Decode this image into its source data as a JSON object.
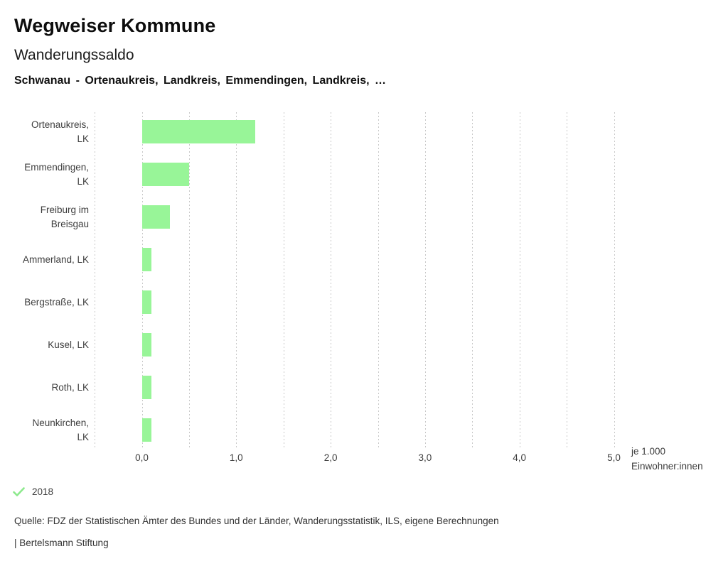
{
  "header": {
    "app_title": "Wegweiser Kommune",
    "chart_title": "Wanderungssaldo",
    "subtitle": "Schwanau - Ortenaukreis, Landkreis, Emmendingen, Landkreis, …"
  },
  "chart_data": {
    "type": "bar",
    "orientation": "horizontal",
    "title": "Wanderungssaldo",
    "categories": [
      "Ortenaukreis, LK",
      "Emmendingen, LK",
      "Freiburg im Breisgau",
      "Ammerland, LK",
      "Bergstraße, LK",
      "Kusel, LK",
      "Roth, LK",
      "Neunkirchen, LK"
    ],
    "category_lines": [
      [
        "Ortenaukreis,",
        "LK"
      ],
      [
        "Emmendingen,",
        "LK"
      ],
      [
        "Freiburg im",
        "Breisgau"
      ],
      [
        "Ammerland, LK"
      ],
      [
        "Bergstraße, LK"
      ],
      [
        "Kusel, LK"
      ],
      [
        "Roth, LK"
      ],
      [
        "Neunkirchen,",
        "LK"
      ]
    ],
    "series": [
      {
        "name": "2018",
        "values": [
          1.2,
          0.5,
          0.3,
          0.1,
          0.1,
          0.1,
          0.1,
          0.1
        ]
      }
    ],
    "xlabel": "je 1.000 Einwohner:innen",
    "xlim": [
      -0.5,
      5.0
    ],
    "x_tick_values": [
      0,
      1,
      2,
      3,
      4,
      5
    ],
    "x_tick_labels": [
      "0,0",
      "1,0",
      "2,0",
      "3,0",
      "4,0",
      "5,0"
    ],
    "gridline_step": 0.5,
    "grid": "vertical dotted",
    "legend_position": "bottom-left"
  },
  "unit_label": {
    "line1": "je 1.000",
    "line2": "Einwohner:innen"
  },
  "legend": {
    "year": "2018",
    "icon": "check-icon"
  },
  "source": "Quelle: FDZ der Statistischen Ämter des Bundes und der Länder, Wanderungsstatistik, ILS, eigene Berechnungen",
  "footer": "| Bertelsmann Stiftung",
  "colors": {
    "bar": "#98f598",
    "legend_check": "#8ce98c",
    "grid": "#c8c8c8",
    "title_text": "#0d0d0d",
    "body_text": "#3d3d3d"
  }
}
